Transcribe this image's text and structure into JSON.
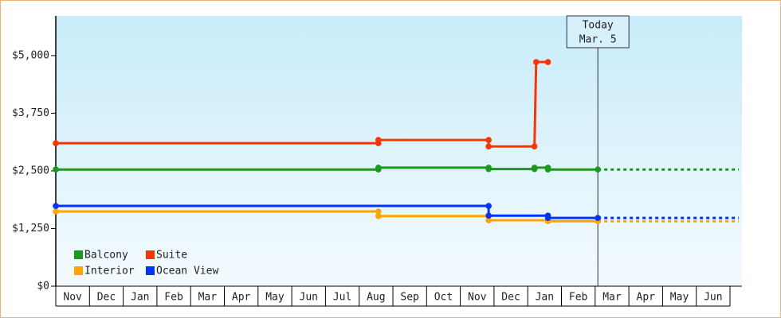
{
  "chart_data": {
    "type": "step-line",
    "ylim": [
      0,
      5860
    ],
    "yticks": [
      {
        "value": 0,
        "label": "$0"
      },
      {
        "value": 1250,
        "label": "$1,250"
      },
      {
        "value": 2500,
        "label": "$2,500"
      },
      {
        "value": 3750,
        "label": "$3,750"
      },
      {
        "value": 5000,
        "label": "$5,000"
      }
    ],
    "xlim": [
      0,
      19.35
    ],
    "xticks": [
      {
        "value": 0.5,
        "label": "Nov"
      },
      {
        "value": 1.5,
        "label": "Dec"
      },
      {
        "value": 2.5,
        "label": "Jan"
      },
      {
        "value": 3.5,
        "label": "Feb"
      },
      {
        "value": 4.5,
        "label": "Mar"
      },
      {
        "value": 5.5,
        "label": "Apr"
      },
      {
        "value": 6.5,
        "label": "May"
      },
      {
        "value": 7.5,
        "label": "Jun"
      },
      {
        "value": 8.5,
        "label": "Jul"
      },
      {
        "value": 9.5,
        "label": "Aug"
      },
      {
        "value": 10.5,
        "label": "Sep"
      },
      {
        "value": 11.5,
        "label": "Oct"
      },
      {
        "value": 12.5,
        "label": "Nov"
      },
      {
        "value": 13.5,
        "label": "Dec"
      },
      {
        "value": 14.5,
        "label": "Jan"
      },
      {
        "value": 15.5,
        "label": "Feb"
      },
      {
        "value": 16.5,
        "label": "Mar"
      },
      {
        "value": 17.5,
        "label": "Apr"
      },
      {
        "value": 18.5,
        "label": "May"
      },
      {
        "value": 19.5,
        "label": "Jun"
      }
    ],
    "annotation": {
      "lines": [
        "Today",
        "Mar. 5"
      ],
      "x": 16.08
    },
    "series": [
      {
        "name": "Balcony",
        "color": "#1a9a1a",
        "x": [
          0,
          9.57,
          9.57,
          12.84,
          12.84,
          14.2,
          14.2,
          14.6,
          14.6,
          16.08
        ],
        "values": [
          2530,
          2530,
          2570,
          2570,
          2540,
          2540,
          2570,
          2570,
          2530,
          2530
        ]
      },
      {
        "name": "Suite",
        "color": "#ff3300",
        "x": [
          0,
          9.57,
          9.57,
          12.84,
          12.84,
          14.2,
          14.25,
          14.6
        ],
        "values": [
          3100,
          3100,
          3170,
          3170,
          3030,
          3030,
          4860,
          4860
        ]
      },
      {
        "name": "Interior",
        "color": "#ffa500",
        "x": [
          0,
          9.57,
          9.57,
          12.84,
          12.84,
          14.6,
          14.6,
          16.08
        ],
        "values": [
          1620,
          1620,
          1520,
          1520,
          1430,
          1430,
          1410,
          1410
        ]
      },
      {
        "name": "Ocean View",
        "color": "#0033ff",
        "x": [
          0,
          12.84,
          12.84,
          14.6,
          14.6,
          16.08
        ],
        "values": [
          1740,
          1740,
          1530,
          1530,
          1480,
          1480
        ]
      }
    ]
  }
}
